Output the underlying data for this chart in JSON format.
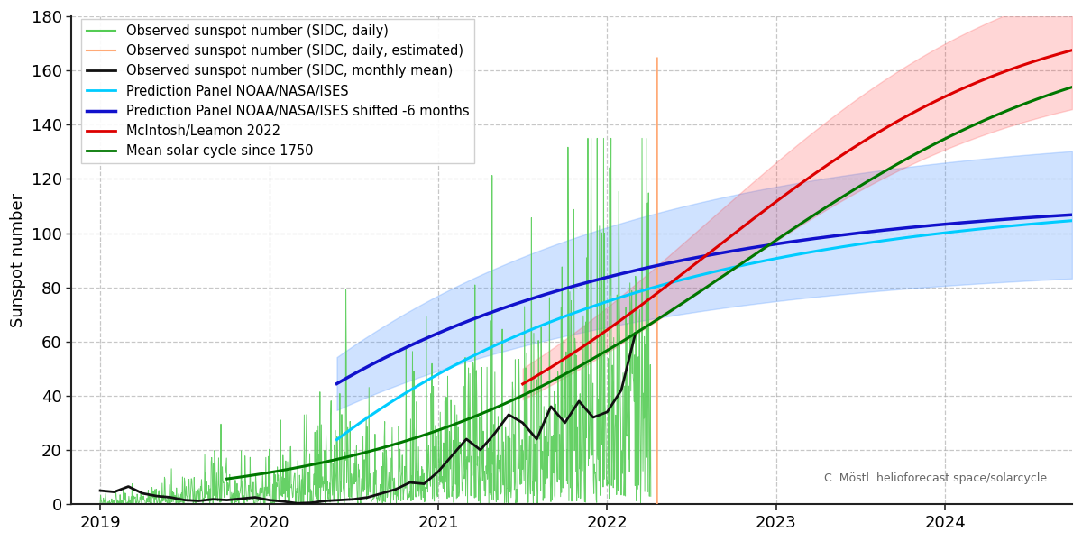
{
  "ylabel": "Sunspot number",
  "xlim": [
    2018.83,
    2024.75
  ],
  "ylim": [
    0,
    180
  ],
  "yticks": [
    0,
    20,
    40,
    60,
    80,
    100,
    120,
    140,
    160,
    180
  ],
  "xticks": [
    2019,
    2020,
    2021,
    2022,
    2023,
    2024
  ],
  "xticklabels": [
    "2019",
    "2020",
    "2021",
    "2022",
    "2023",
    "2024"
  ],
  "grid_color": "#aaaaaa",
  "bg_color": "#ffffff",
  "watermark": "C. Möstl  helioforecast.space/solarcycle",
  "color_daily_green": "#55cc55",
  "color_daily_orange": "#ffaa77",
  "color_monthly_black": "#111111",
  "color_noaa_cyan": "#00ccff",
  "color_noaa_blue": "#1111cc",
  "color_ml_red": "#dd0000",
  "color_mean_green": "#007700",
  "orange_line_x": 2022.29,
  "orange_line_top": 165,
  "legend_labels": [
    "Observed sunspot number (SIDC, daily)",
    "Observed sunspot number (SIDC, daily, estimated)",
    "Observed sunspot number (SIDC, monthly mean)",
    "Prediction Panel NOAA/NASA/ISES",
    "Prediction Panel NOAA/NASA/ISES shifted -6 months",
    "McIntosh/Leamon 2022",
    "Mean solar cycle since 1750"
  ],
  "monthly_t": [
    2019.0,
    2019.083,
    2019.167,
    2019.25,
    2019.333,
    2019.417,
    2019.5,
    2019.583,
    2019.667,
    2019.75,
    2019.833,
    2019.917,
    2020.0,
    2020.083,
    2020.167,
    2020.25,
    2020.333,
    2020.417,
    2020.5,
    2020.583,
    2020.667,
    2020.75,
    2020.833,
    2020.917,
    2021.0,
    2021.083,
    2021.167,
    2021.25,
    2021.333,
    2021.417,
    2021.5,
    2021.583,
    2021.667,
    2021.75,
    2021.833,
    2021.917,
    2022.0,
    2022.083,
    2022.167
  ],
  "monthly_v": [
    5.0,
    4.5,
    6.5,
    4.0,
    3.0,
    2.5,
    1.5,
    1.2,
    1.8,
    1.5,
    2.0,
    2.5,
    1.5,
    1.0,
    0.3,
    0.5,
    1.2,
    1.5,
    1.8,
    2.5,
    4.0,
    5.5,
    8.0,
    7.5,
    12.0,
    18.0,
    24.0,
    20.0,
    26.0,
    33.0,
    30.0,
    24.0,
    36.0,
    30.0,
    38.0,
    32.0,
    34.0,
    42.0,
    63.0
  ]
}
